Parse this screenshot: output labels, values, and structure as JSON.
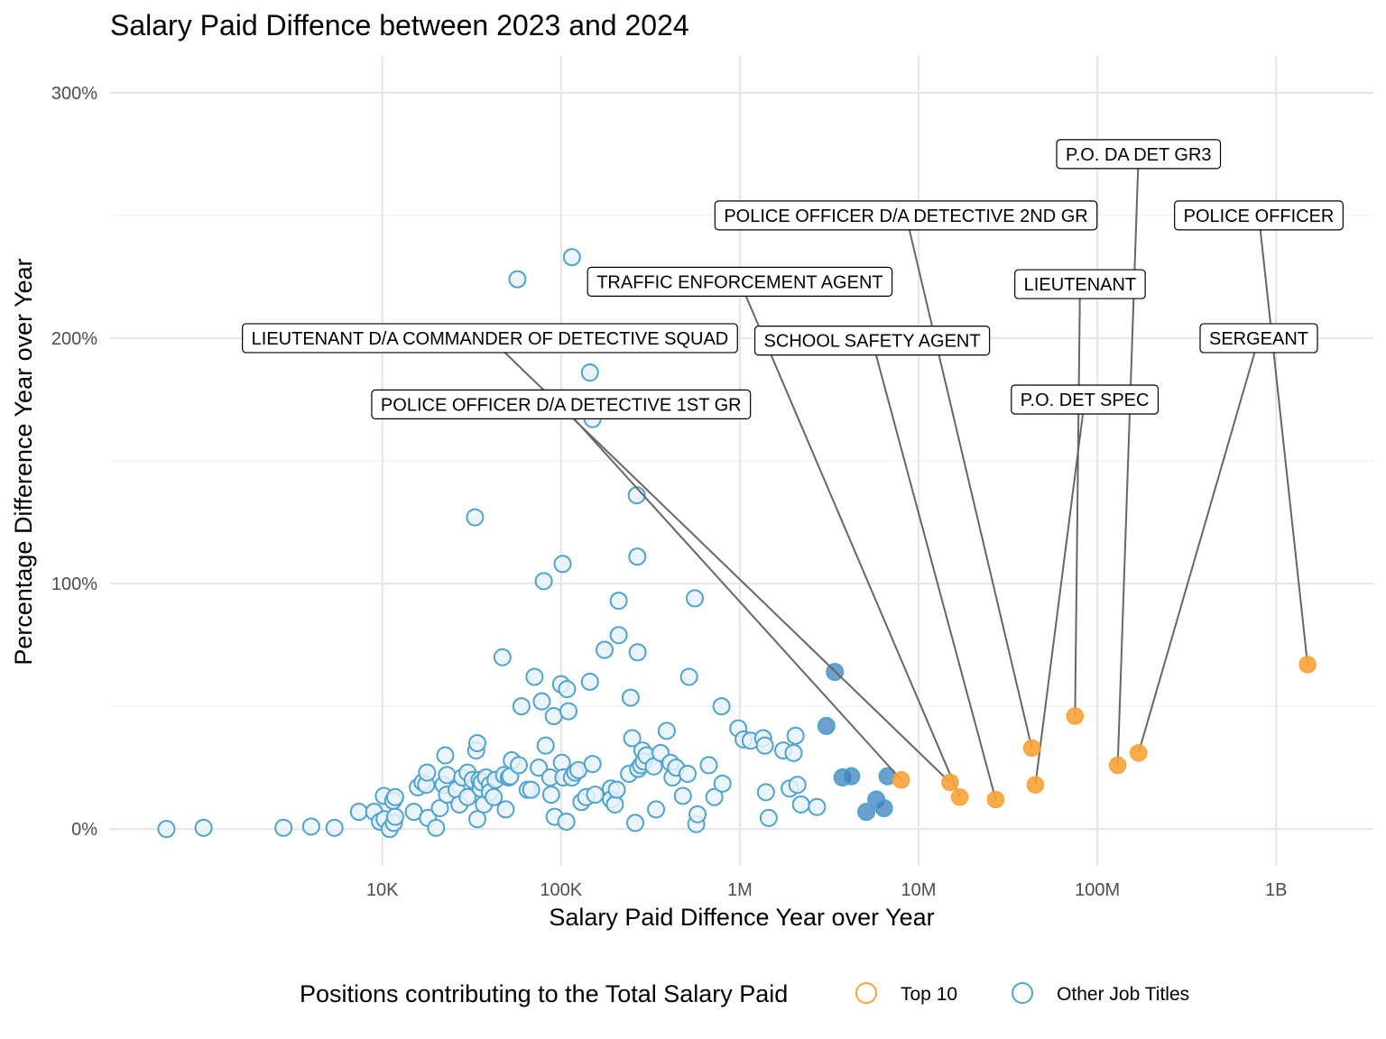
{
  "chart_data": {
    "type": "scatter",
    "title": "Salary Paid Diffence between 2023 and 2024",
    "xlabel": "Salary Paid Diffence Year over Year",
    "ylabel": "Percentage Difference Year over Year",
    "x_scale": "log10",
    "xlim": [
      300,
      3500000000
    ],
    "ylim": [
      -15,
      315
    ],
    "x_ticks": [
      {
        "value": 10000,
        "label": "10K"
      },
      {
        "value": 100000,
        "label": "100K"
      },
      {
        "value": 1000000,
        "label": "1M"
      },
      {
        "value": 10000000,
        "label": "10M"
      },
      {
        "value": 100000000,
        "label": "100M"
      },
      {
        "value": 1000000000,
        "label": "1B"
      }
    ],
    "y_ticks": [
      {
        "value": 0,
        "label": "0%"
      },
      {
        "value": 100,
        "label": "100%"
      },
      {
        "value": 200,
        "label": "200%"
      },
      {
        "value": 300,
        "label": "300%"
      }
    ],
    "y_minor": [
      50,
      150,
      250
    ],
    "grid": true,
    "legend": {
      "title": "Positions contributing to the Total Salary Paid",
      "position": "bottom",
      "entries": [
        {
          "label": "Top 10",
          "color": "#F9A33A"
        },
        {
          "label": "Other Job Titles",
          "color": "#4EA3CF"
        }
      ]
    },
    "colors": {
      "top10": "#F9A33A",
      "other_stroke": "#4EA3CF",
      "other_fill": "#e8f2fa",
      "other_dark": "#3f7fbf"
    },
    "top10_series": [
      {
        "name": "POLICE OFFICER",
        "x": 1500000000,
        "y": 67,
        "label_x": 800000000,
        "label_y": 250
      },
      {
        "name": "P.O. DA DET GR3",
        "x": 130000000,
        "y": 26,
        "label_x": 170000000,
        "label_y": 275
      },
      {
        "name": "SERGEANT",
        "x": 170000000,
        "y": 31,
        "label_x": 800000000,
        "label_y": 200
      },
      {
        "name": "LIEUTENANT",
        "x": 75000000,
        "y": 46,
        "label_x": 80000000,
        "label_y": 222
      },
      {
        "name": "P.O. DET SPEC",
        "x": 45000000,
        "y": 18,
        "label_x": 85000000,
        "label_y": 175
      },
      {
        "name": "POLICE OFFICER D/A DETECTIVE 2ND GR",
        "x": 43000000,
        "y": 33,
        "label_x": 8500000,
        "label_y": 250
      },
      {
        "name": "TRAFFIC ENFORCEMENT AGENT",
        "x": 17000000,
        "y": 13,
        "label_x": 1000000,
        "label_y": 223
      },
      {
        "name": "SCHOOL SAFETY AGENT",
        "x": 27000000,
        "y": 12,
        "label_x": 5500000,
        "label_y": 199
      },
      {
        "name": "LIEUTENANT D/A COMMANDER OF DETECTIVE SQUAD",
        "x": 15000000,
        "y": 19,
        "label_x": 40000,
        "label_y": 200
      },
      {
        "name": "POLICE OFFICER D/A DETECTIVE 1ST GR",
        "x": 8000000,
        "y": 20,
        "label_x": 100000,
        "label_y": 173
      }
    ],
    "other_points": [
      [
        620,
        0
      ],
      [
        1000,
        0.5
      ],
      [
        2800,
        0.5
      ],
      [
        4000,
        1
      ],
      [
        5400,
        0.5
      ],
      [
        7400,
        7
      ],
      [
        9000,
        7
      ],
      [
        9700,
        3
      ],
      [
        10300,
        4
      ],
      [
        10200,
        13.5
      ],
      [
        11000,
        0
      ],
      [
        11600,
        2.5
      ],
      [
        11800,
        5
      ],
      [
        11500,
        11.5
      ],
      [
        11800,
        13
      ],
      [
        15000,
        7
      ],
      [
        15800,
        17
      ],
      [
        16800,
        19
      ],
      [
        17600,
        18
      ],
      [
        17800,
        23
      ],
      [
        18000,
        4.5
      ],
      [
        20000,
        0.5
      ],
      [
        21000,
        8.5
      ],
      [
        22000,
        18
      ],
      [
        22500,
        30
      ],
      [
        23000,
        14
      ],
      [
        23000,
        22
      ],
      [
        26000,
        16
      ],
      [
        27000,
        10
      ],
      [
        28000,
        21
      ],
      [
        30000,
        13
      ],
      [
        30000,
        23
      ],
      [
        32000,
        20
      ],
      [
        33000,
        127
      ],
      [
        33500,
        32
      ],
      [
        34000,
        35
      ],
      [
        34000,
        4
      ],
      [
        35000,
        20
      ],
      [
        35500,
        16.5
      ],
      [
        36000,
        19
      ],
      [
        37000,
        10
      ],
      [
        38000,
        21
      ],
      [
        40000,
        18
      ],
      [
        40000,
        15
      ],
      [
        42000,
        13
      ],
      [
        43000,
        20
      ],
      [
        47000,
        70
      ],
      [
        48000,
        22
      ],
      [
        49000,
        8
      ],
      [
        51000,
        21
      ],
      [
        52000,
        21.5
      ],
      [
        53000,
        28
      ],
      [
        57000,
        224
      ],
      [
        58000,
        26
      ],
      [
        60000,
        50
      ],
      [
        65000,
        16
      ],
      [
        68000,
        16
      ],
      [
        71000,
        62
      ],
      [
        75000,
        25
      ],
      [
        78000,
        52
      ],
      [
        80000,
        101
      ],
      [
        82000,
        34
      ],
      [
        87000,
        21
      ],
      [
        88000,
        14
      ],
      [
        91000,
        46
      ],
      [
        92000,
        5
      ],
      [
        100000,
        59
      ],
      [
        101000,
        27
      ],
      [
        102000,
        108
      ],
      [
        103000,
        21
      ],
      [
        107000,
        3
      ],
      [
        108000,
        57
      ],
      [
        110000,
        48
      ],
      [
        115000,
        233
      ],
      [
        115000,
        21
      ],
      [
        120000,
        23
      ],
      [
        125000,
        24
      ],
      [
        130000,
        11
      ],
      [
        138000,
        13
      ],
      [
        145000,
        186
      ],
      [
        145000,
        60
      ],
      [
        150000,
        26.5
      ],
      [
        150000,
        167
      ],
      [
        155000,
        14
      ],
      [
        175000,
        73
      ],
      [
        190000,
        16.5
      ],
      [
        190000,
        12
      ],
      [
        200000,
        10
      ],
      [
        205000,
        16
      ],
      [
        210000,
        93
      ],
      [
        210000,
        79
      ],
      [
        240000,
        22.5
      ],
      [
        245000,
        53.5
      ],
      [
        250000,
        37
      ],
      [
        260000,
        2.5
      ],
      [
        265000,
        136
      ],
      [
        267000,
        111
      ],
      [
        268000,
        72
      ],
      [
        270000,
        24.5
      ],
      [
        280000,
        26
      ],
      [
        285000,
        32
      ],
      [
        290000,
        27.5
      ],
      [
        300000,
        30
      ],
      [
        330000,
        25.5
      ],
      [
        340000,
        8
      ],
      [
        360000,
        31
      ],
      [
        390000,
        40
      ],
      [
        410000,
        27
      ],
      [
        420000,
        21
      ],
      [
        440000,
        25
      ],
      [
        480000,
        13.5
      ],
      [
        510000,
        22.5
      ],
      [
        520000,
        62
      ],
      [
        560000,
        94
      ],
      [
        570000,
        2
      ],
      [
        580000,
        6
      ],
      [
        670000,
        26
      ],
      [
        720000,
        13
      ],
      [
        790000,
        50
      ],
      [
        800000,
        18.5
      ],
      [
        980000,
        41
      ],
      [
        1050000,
        36.5
      ],
      [
        1150000,
        36
      ],
      [
        1350000,
        37
      ],
      [
        1380000,
        34
      ],
      [
        1400000,
        15
      ],
      [
        1450000,
        4.5
      ],
      [
        1750000,
        32
      ],
      [
        1900000,
        16.5
      ],
      [
        2000000,
        31
      ],
      [
        2050000,
        38
      ],
      [
        2100000,
        18
      ],
      [
        2200000,
        10
      ],
      [
        2700000,
        9
      ],
      [
        3050000,
        42
      ],
      [
        3400000,
        64
      ],
      [
        3750000,
        21
      ],
      [
        4200000,
        21.5
      ],
      [
        5100000,
        7
      ],
      [
        5800000,
        12
      ],
      [
        6400000,
        8.5
      ],
      [
        6700000,
        21.5
      ]
    ]
  }
}
